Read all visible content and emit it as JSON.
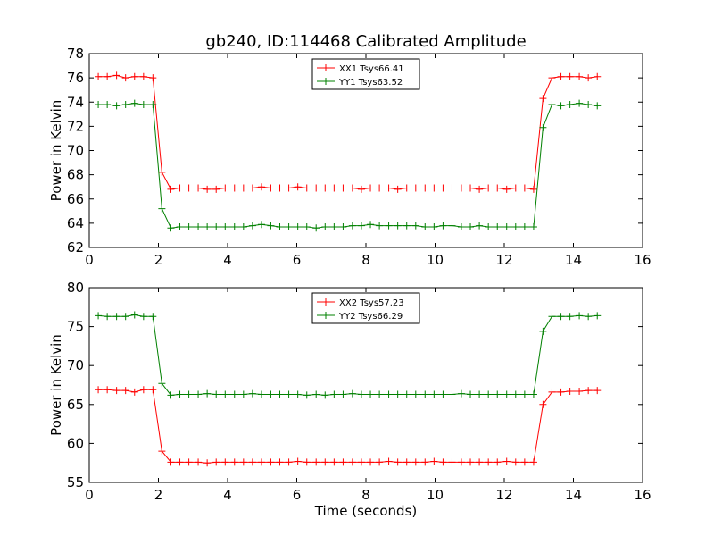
{
  "figure": {
    "title": "gb240, ID:114468 Calibrated Amplitude"
  },
  "chart_data": [
    {
      "type": "line",
      "title": "gb240, ID:114468 Calibrated Amplitude",
      "xlabel": "",
      "ylabel": "Power in Kelvin",
      "xlim": [
        0,
        16
      ],
      "ylim": [
        62,
        78
      ],
      "xticks": [
        0,
        2,
        4,
        6,
        8,
        10,
        12,
        14,
        16
      ],
      "yticks": [
        62,
        64,
        66,
        68,
        70,
        72,
        74,
        76,
        78
      ],
      "grid": false,
      "legend_position": "top-center",
      "x": [
        0.26,
        0.52,
        0.79,
        1.05,
        1.31,
        1.57,
        1.84,
        2.1,
        2.36,
        2.62,
        2.88,
        3.15,
        3.41,
        3.67,
        3.93,
        4.2,
        4.46,
        4.72,
        4.98,
        5.25,
        5.51,
        5.77,
        6.03,
        6.29,
        6.56,
        6.82,
        7.08,
        7.34,
        7.61,
        7.87,
        8.13,
        8.39,
        8.66,
        8.92,
        9.18,
        9.44,
        9.71,
        9.97,
        10.23,
        10.49,
        10.76,
        11.02,
        11.28,
        11.54,
        11.8,
        12.07,
        12.33,
        12.59,
        12.85,
        13.12,
        13.38,
        13.64,
        13.9,
        14.17,
        14.43,
        14.69
      ],
      "series": [
        {
          "name": "XX1 Tsys66.41",
          "color": "#ff0000",
          "values": [
            76.1,
            76.1,
            76.2,
            76.0,
            76.1,
            76.1,
            76.0,
            68.2,
            66.8,
            66.9,
            66.9,
            66.9,
            66.8,
            66.8,
            66.9,
            66.9,
            66.9,
            66.9,
            67.0,
            66.9,
            66.9,
            66.9,
            67.0,
            66.9,
            66.9,
            66.9,
            66.9,
            66.9,
            66.9,
            66.8,
            66.9,
            66.9,
            66.9,
            66.8,
            66.9,
            66.9,
            66.9,
            66.9,
            66.9,
            66.9,
            66.9,
            66.9,
            66.8,
            66.9,
            66.9,
            66.8,
            66.9,
            66.9,
            66.8,
            74.3,
            76.0,
            76.1,
            76.1,
            76.1,
            76.0,
            76.1
          ]
        },
        {
          "name": "YY1 Tsys63.52",
          "color": "#008000",
          "values": [
            73.8,
            73.8,
            73.7,
            73.8,
            73.9,
            73.8,
            73.8,
            65.2,
            63.6,
            63.7,
            63.7,
            63.7,
            63.7,
            63.7,
            63.7,
            63.7,
            63.7,
            63.8,
            63.9,
            63.8,
            63.7,
            63.7,
            63.7,
            63.7,
            63.6,
            63.7,
            63.7,
            63.7,
            63.8,
            63.8,
            63.9,
            63.8,
            63.8,
            63.8,
            63.8,
            63.8,
            63.7,
            63.7,
            63.8,
            63.8,
            63.7,
            63.7,
            63.8,
            63.7,
            63.7,
            63.7,
            63.7,
            63.7,
            63.7,
            71.9,
            73.8,
            73.7,
            73.8,
            73.9,
            73.8,
            73.7
          ]
        }
      ]
    },
    {
      "type": "line",
      "title": "",
      "xlabel": "Time (seconds)",
      "ylabel": "Power in Kelvin",
      "xlim": [
        0,
        16
      ],
      "ylim": [
        55,
        80
      ],
      "xticks": [
        0,
        2,
        4,
        6,
        8,
        10,
        12,
        14,
        16
      ],
      "yticks": [
        55,
        60,
        65,
        70,
        75,
        80
      ],
      "grid": false,
      "legend_position": "top-center",
      "x": [
        0.26,
        0.52,
        0.79,
        1.05,
        1.31,
        1.57,
        1.84,
        2.1,
        2.36,
        2.62,
        2.88,
        3.15,
        3.41,
        3.67,
        3.93,
        4.2,
        4.46,
        4.72,
        4.98,
        5.25,
        5.51,
        5.77,
        6.03,
        6.29,
        6.56,
        6.82,
        7.08,
        7.34,
        7.61,
        7.87,
        8.13,
        8.39,
        8.66,
        8.92,
        9.18,
        9.44,
        9.71,
        9.97,
        10.23,
        10.49,
        10.76,
        11.02,
        11.28,
        11.54,
        11.8,
        12.07,
        12.33,
        12.59,
        12.85,
        13.12,
        13.38,
        13.64,
        13.9,
        14.17,
        14.43,
        14.69
      ],
      "series": [
        {
          "name": "XX2 Tsys57.23",
          "color": "#ff0000",
          "values": [
            66.9,
            66.9,
            66.8,
            66.8,
            66.6,
            66.9,
            66.9,
            59.0,
            57.6,
            57.6,
            57.6,
            57.6,
            57.5,
            57.6,
            57.6,
            57.6,
            57.6,
            57.6,
            57.6,
            57.6,
            57.6,
            57.6,
            57.7,
            57.6,
            57.6,
            57.6,
            57.6,
            57.6,
            57.6,
            57.6,
            57.6,
            57.6,
            57.7,
            57.6,
            57.6,
            57.6,
            57.6,
            57.7,
            57.6,
            57.6,
            57.6,
            57.6,
            57.6,
            57.6,
            57.6,
            57.7,
            57.6,
            57.6,
            57.6,
            65.0,
            66.6,
            66.6,
            66.7,
            66.7,
            66.8,
            66.8
          ]
        },
        {
          "name": "YY2 Tsys66.29",
          "color": "#008000",
          "values": [
            76.4,
            76.3,
            76.3,
            76.3,
            76.5,
            76.3,
            76.3,
            67.7,
            66.2,
            66.3,
            66.3,
            66.3,
            66.4,
            66.3,
            66.3,
            66.3,
            66.3,
            66.4,
            66.3,
            66.3,
            66.3,
            66.3,
            66.3,
            66.2,
            66.3,
            66.2,
            66.3,
            66.3,
            66.4,
            66.3,
            66.3,
            66.3,
            66.3,
            66.3,
            66.3,
            66.3,
            66.3,
            66.3,
            66.3,
            66.3,
            66.4,
            66.3,
            66.3,
            66.3,
            66.3,
            66.3,
            66.3,
            66.3,
            66.3,
            74.4,
            76.3,
            76.3,
            76.3,
            76.4,
            76.3,
            76.4
          ]
        }
      ]
    }
  ]
}
